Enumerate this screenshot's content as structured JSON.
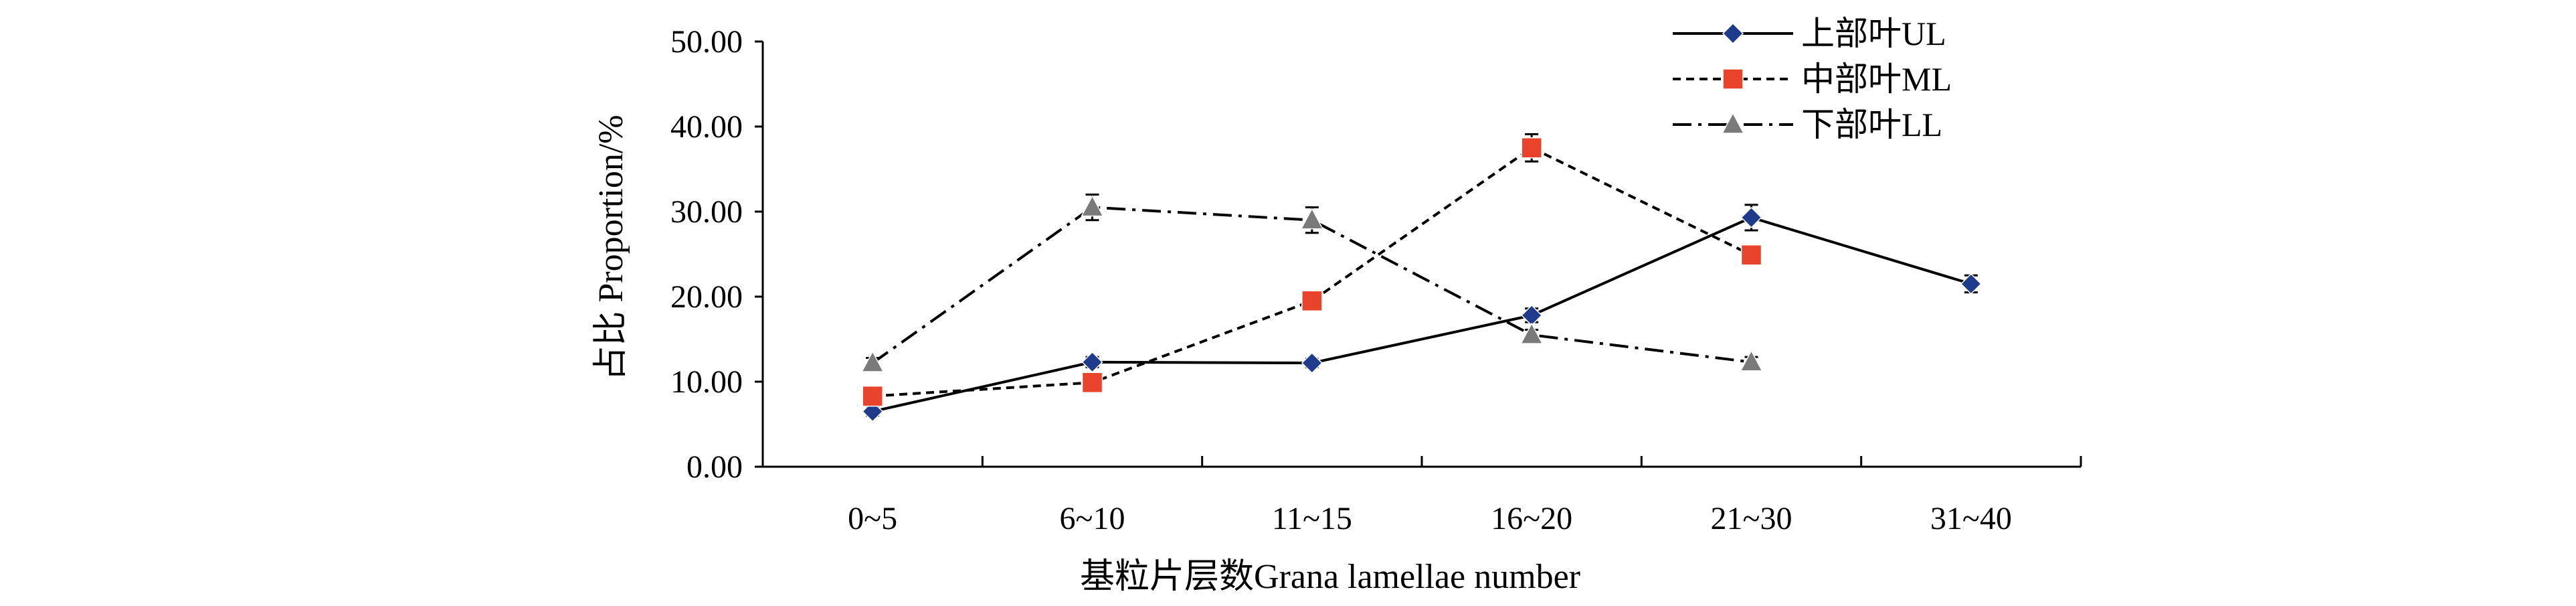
{
  "chart_data": {
    "type": "line",
    "title": "",
    "xlabel": "基粒片层数Grana lamellae number",
    "ylabel": "占比 Proportion/%",
    "categories": [
      "0~5",
      "6~10",
      "11~15",
      "16~20",
      "21~30",
      "31~40"
    ],
    "ylim": [
      0,
      50
    ],
    "yticks": [
      "0.00",
      "10.00",
      "20.00",
      "30.00",
      "40.00",
      "50.00"
    ],
    "grid": false,
    "legend_position": "top-right",
    "series": [
      {
        "name": "上部叶UL",
        "values": [
          6.5,
          12.3,
          12.2,
          17.8,
          29.3,
          21.5
        ],
        "errors": [
          0.5,
          0.6,
          0.5,
          0.8,
          1.5,
          1.0
        ],
        "color": "#1f3b8c",
        "marker": "diamond",
        "line_style": "solid"
      },
      {
        "name": "中部叶ML",
        "values": [
          8.3,
          9.9,
          19.5,
          37.5,
          24.9,
          null
        ],
        "errors": [
          0.6,
          0.6,
          0.6,
          1.6,
          0.7,
          null
        ],
        "color": "#e8432b",
        "marker": "square",
        "line_style": "dashed"
      },
      {
        "name": "下部叶LL",
        "values": [
          12.2,
          30.5,
          29.0,
          15.5,
          12.3,
          null
        ],
        "errors": [
          0.6,
          1.5,
          1.5,
          0.6,
          0.6,
          null
        ],
        "color": "#7a7a7a",
        "marker": "triangle",
        "line_style": "dashdot"
      }
    ]
  }
}
